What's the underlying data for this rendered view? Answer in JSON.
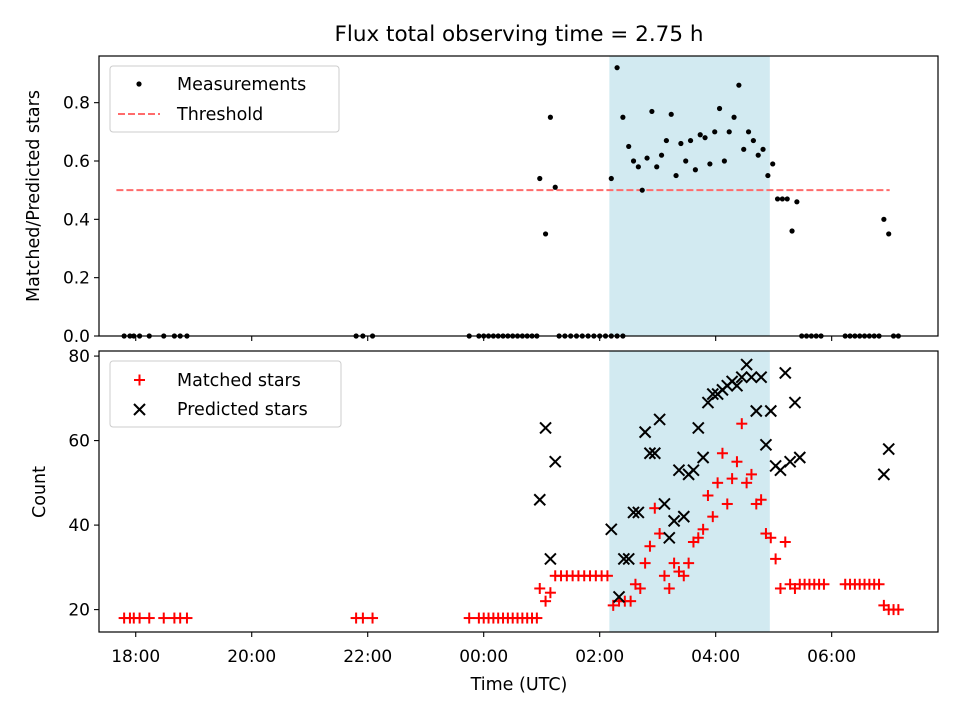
{
  "figure": {
    "title": "Flux total observing time = 2.75 h",
    "xlabel": "Time (UTC)",
    "x_ticks": [
      {
        "h": -6,
        "label": "18:00"
      },
      {
        "h": -4,
        "label": "20:00"
      },
      {
        "h": -2,
        "label": "22:00"
      },
      {
        "h": 0,
        "label": "00:00"
      },
      {
        "h": 2,
        "label": "02:00"
      },
      {
        "h": 4,
        "label": "04:00"
      },
      {
        "h": 6,
        "label": "06:00"
      }
    ],
    "shade_color": "#add8e6"
  },
  "chart_data": [
    {
      "type": "scatter",
      "ylabel": "Matched/Predicted stars",
      "xlim": [
        "17:22",
        "07:50"
      ],
      "ylim": [
        0,
        0.96
      ],
      "y_ticks": [
        "0.0",
        "0.2",
        "0.4",
        "0.6",
        "0.8"
      ],
      "shaded_region": [
        "02:10",
        "04:56"
      ],
      "legend_position": "upper-left",
      "threshold": {
        "name": "Threshold",
        "value": 0.5,
        "x_range": [
          "17:40",
          "07:00"
        ],
        "color": "#ff6b6b"
      },
      "series": [
        {
          "name": "Measurements",
          "marker": "dot",
          "color": "#000000",
          "points": [
            [
              "17:48",
              0
            ],
            [
              "17:54",
              0
            ],
            [
              "17:58",
              0
            ],
            [
              "18:04",
              0
            ],
            [
              "18:14",
              0
            ],
            [
              "18:29",
              0
            ],
            [
              "18:40",
              0
            ],
            [
              "18:46",
              0
            ],
            [
              "18:53",
              0
            ],
            [
              "21:48",
              0
            ],
            [
              "21:55",
              0
            ],
            [
              "22:05",
              0
            ],
            [
              "23:45",
              0
            ],
            [
              "23:55",
              0
            ],
            [
              "00:00",
              0
            ],
            [
              "00:05",
              0
            ],
            [
              "00:10",
              0
            ],
            [
              "00:15",
              0
            ],
            [
              "00:20",
              0
            ],
            [
              "00:25",
              0
            ],
            [
              "00:30",
              0
            ],
            [
              "00:35",
              0
            ],
            [
              "00:40",
              0
            ],
            [
              "00:45",
              0
            ],
            [
              "00:50",
              0
            ],
            [
              "00:55",
              0
            ],
            [
              "00:58",
              0.54
            ],
            [
              "01:04",
              0.35
            ],
            [
              "01:09",
              0.75
            ],
            [
              "01:14",
              0.51
            ],
            [
              "01:18",
              0
            ],
            [
              "01:24",
              0
            ],
            [
              "01:30",
              0
            ],
            [
              "01:36",
              0
            ],
            [
              "01:42",
              0
            ],
            [
              "01:48",
              0
            ],
            [
              "01:54",
              0
            ],
            [
              "02:00",
              0
            ],
            [
              "02:06",
              0
            ],
            [
              "02:12",
              0
            ],
            [
              "02:18",
              0
            ],
            [
              "02:24",
              0
            ],
            [
              "02:12",
              0.54
            ],
            [
              "02:18",
              0.92
            ],
            [
              "02:24",
              0.75
            ],
            [
              "02:30",
              0.65
            ],
            [
              "02:35",
              0.6
            ],
            [
              "02:40",
              0.58
            ],
            [
              "02:44",
              0.5
            ],
            [
              "02:49",
              0.61
            ],
            [
              "02:54",
              0.77
            ],
            [
              "02:59",
              0.58
            ],
            [
              "03:04",
              0.62
            ],
            [
              "03:09",
              0.67
            ],
            [
              "03:14",
              0.76
            ],
            [
              "03:19",
              0.55
            ],
            [
              "03:24",
              0.66
            ],
            [
              "03:29",
              0.6
            ],
            [
              "03:34",
              0.67
            ],
            [
              "03:39",
              0.57
            ],
            [
              "03:44",
              0.69
            ],
            [
              "03:49",
              0.68
            ],
            [
              "03:54",
              0.59
            ],
            [
              "03:59",
              0.7
            ],
            [
              "04:04",
              0.78
            ],
            [
              "04:09",
              0.6
            ],
            [
              "04:14",
              0.7
            ],
            [
              "04:19",
              0.75
            ],
            [
              "04:24",
              0.86
            ],
            [
              "04:29",
              0.64
            ],
            [
              "04:34",
              0.7
            ],
            [
              "04:39",
              0.67
            ],
            [
              "04:44",
              0.62
            ],
            [
              "04:49",
              0.64
            ],
            [
              "04:54",
              0.55
            ],
            [
              "04:59",
              0.59
            ],
            [
              "05:04",
              0.47
            ],
            [
              "05:09",
              0.47
            ],
            [
              "05:14",
              0.47
            ],
            [
              "05:19",
              0.36
            ],
            [
              "05:24",
              0.46
            ],
            [
              "05:29",
              0
            ],
            [
              "05:34",
              0
            ],
            [
              "05:39",
              0
            ],
            [
              "05:44",
              0
            ],
            [
              "05:49",
              0
            ],
            [
              "06:14",
              0
            ],
            [
              "06:19",
              0
            ],
            [
              "06:24",
              0
            ],
            [
              "06:29",
              0
            ],
            [
              "06:34",
              0
            ],
            [
              "06:39",
              0
            ],
            [
              "06:44",
              0
            ],
            [
              "06:49",
              0
            ],
            [
              "06:54",
              0.4
            ],
            [
              "06:59",
              0.35
            ],
            [
              "07:04",
              0
            ],
            [
              "07:09",
              0
            ]
          ]
        }
      ]
    },
    {
      "type": "scatter",
      "ylabel": "Count",
      "xlim": [
        "17:22",
        "07:50"
      ],
      "ylim": [
        14.7,
        81.2
      ],
      "y_ticks": [
        "20",
        "40",
        "60",
        "80"
      ],
      "shaded_region": [
        "02:10",
        "04:56"
      ],
      "legend_position": "upper-left",
      "series": [
        {
          "name": "Matched stars",
          "marker": "plus",
          "color": "#ff0000",
          "points": [
            [
              "17:48",
              18
            ],
            [
              "17:54",
              18
            ],
            [
              "17:58",
              18
            ],
            [
              "18:04",
              18
            ],
            [
              "18:14",
              18
            ],
            [
              "18:29",
              18
            ],
            [
              "18:40",
              18
            ],
            [
              "18:46",
              18
            ],
            [
              "18:53",
              18
            ],
            [
              "21:48",
              18
            ],
            [
              "21:55",
              18
            ],
            [
              "22:05",
              18
            ],
            [
              "23:45",
              18
            ],
            [
              "23:55",
              18
            ],
            [
              "00:00",
              18
            ],
            [
              "00:05",
              18
            ],
            [
              "00:10",
              18
            ],
            [
              "00:15",
              18
            ],
            [
              "00:20",
              18
            ],
            [
              "00:25",
              18
            ],
            [
              "00:30",
              18
            ],
            [
              "00:35",
              18
            ],
            [
              "00:40",
              18
            ],
            [
              "00:45",
              18
            ],
            [
              "00:50",
              18
            ],
            [
              "00:55",
              18
            ],
            [
              "00:58",
              25
            ],
            [
              "01:04",
              22
            ],
            [
              "01:09",
              24
            ],
            [
              "01:14",
              28
            ],
            [
              "01:20",
              28
            ],
            [
              "01:26",
              28
            ],
            [
              "01:32",
              28
            ],
            [
              "01:38",
              28
            ],
            [
              "01:44",
              28
            ],
            [
              "01:50",
              28
            ],
            [
              "01:56",
              28
            ],
            [
              "02:02",
              28
            ],
            [
              "02:08",
              28
            ],
            [
              "02:14",
              21
            ],
            [
              "02:20",
              22
            ],
            [
              "02:26",
              22
            ],
            [
              "02:32",
              22
            ],
            [
              "02:37",
              26
            ],
            [
              "02:42",
              25
            ],
            [
              "02:47",
              31
            ],
            [
              "02:52",
              35
            ],
            [
              "02:57",
              44
            ],
            [
              "03:02",
              38
            ],
            [
              "03:07",
              28
            ],
            [
              "03:12",
              25
            ],
            [
              "03:17",
              31
            ],
            [
              "03:22",
              29
            ],
            [
              "03:27",
              28
            ],
            [
              "03:32",
              31
            ],
            [
              "03:37",
              36
            ],
            [
              "03:42",
              37
            ],
            [
              "03:47",
              39
            ],
            [
              "03:52",
              47
            ],
            [
              "03:57",
              42
            ],
            [
              "04:02",
              50
            ],
            [
              "04:07",
              57
            ],
            [
              "04:12",
              45
            ],
            [
              "04:17",
              51
            ],
            [
              "04:22",
              55
            ],
            [
              "04:27",
              64
            ],
            [
              "04:32",
              50
            ],
            [
              "04:37",
              52
            ],
            [
              "04:42",
              45
            ],
            [
              "04:47",
              46
            ],
            [
              "04:52",
              38
            ],
            [
              "04:57",
              37
            ],
            [
              "05:02",
              32
            ],
            [
              "05:07",
              25
            ],
            [
              "05:12",
              36
            ],
            [
              "05:17",
              26
            ],
            [
              "05:22",
              25
            ],
            [
              "05:27",
              26
            ],
            [
              "05:32",
              26
            ],
            [
              "05:37",
              26
            ],
            [
              "05:42",
              26
            ],
            [
              "05:47",
              26
            ],
            [
              "05:52",
              26
            ],
            [
              "06:14",
              26
            ],
            [
              "06:19",
              26
            ],
            [
              "06:24",
              26
            ],
            [
              "06:29",
              26
            ],
            [
              "06:34",
              26
            ],
            [
              "06:39",
              26
            ],
            [
              "06:44",
              26
            ],
            [
              "06:49",
              26
            ],
            [
              "06:54",
              21
            ],
            [
              "06:59",
              20
            ],
            [
              "07:04",
              20
            ],
            [
              "07:09",
              20
            ]
          ]
        },
        {
          "name": "Predicted stars",
          "marker": "x",
          "color": "#000000",
          "points": [
            [
              "00:58",
              46
            ],
            [
              "01:04",
              63
            ],
            [
              "01:09",
              32
            ],
            [
              "01:14",
              55
            ],
            [
              "02:12",
              39
            ],
            [
              "02:20",
              23
            ],
            [
              "02:25",
              32
            ],
            [
              "02:30",
              32
            ],
            [
              "02:35",
              43
            ],
            [
              "02:40",
              43
            ],
            [
              "02:47",
              62
            ],
            [
              "02:52",
              57
            ],
            [
              "02:57",
              57
            ],
            [
              "03:02",
              65
            ],
            [
              "03:07",
              45
            ],
            [
              "03:12",
              37
            ],
            [
              "03:17",
              41
            ],
            [
              "03:22",
              53
            ],
            [
              "03:27",
              42
            ],
            [
              "03:32",
              52
            ],
            [
              "03:37",
              53
            ],
            [
              "03:42",
              63
            ],
            [
              "03:47",
              56
            ],
            [
              "03:52",
              69
            ],
            [
              "03:57",
              71
            ],
            [
              "04:02",
              71
            ],
            [
              "04:07",
              72
            ],
            [
              "04:12",
              73
            ],
            [
              "04:17",
              74
            ],
            [
              "04:22",
              73
            ],
            [
              "04:27",
              75
            ],
            [
              "04:32",
              78
            ],
            [
              "04:37",
              75
            ],
            [
              "04:42",
              67
            ],
            [
              "04:47",
              75
            ],
            [
              "04:52",
              59
            ],
            [
              "04:57",
              67
            ],
            [
              "05:02",
              54
            ],
            [
              "05:07",
              53
            ],
            [
              "05:12",
              76
            ],
            [
              "05:17",
              55
            ],
            [
              "05:22",
              69
            ],
            [
              "05:27",
              56
            ],
            [
              "06:54",
              52
            ],
            [
              "06:59",
              58
            ]
          ]
        }
      ]
    }
  ]
}
